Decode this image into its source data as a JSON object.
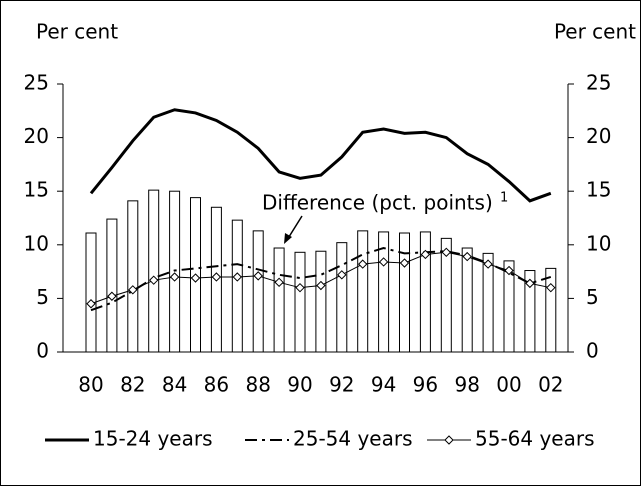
{
  "chart_data": {
    "type": "bar-line",
    "y_label_left": "Per cent",
    "y_label_right": "Per cent",
    "annotation": "Difference (pct. points)",
    "annotation_note": "1",
    "categories": [
      "80",
      null,
      "82",
      null,
      "84",
      null,
      "86",
      null,
      "88",
      null,
      "90",
      null,
      "92",
      null,
      "94",
      null,
      "96",
      null,
      "98",
      null,
      "00",
      null,
      "02"
    ],
    "series": [
      {
        "type": "bar",
        "color": "#000000",
        "fill": "#ffffff",
        "values": [
          11.1,
          12.4,
          14.1,
          15.1,
          15.0,
          14.4,
          13.5,
          12.3,
          11.3,
          9.7,
          9.3,
          9.4,
          10.2,
          11.3,
          11.2,
          11.1,
          11.2,
          10.6,
          9.7,
          9.2,
          8.5,
          7.6,
          7.8
        ]
      },
      {
        "type": "line",
        "name": "15-24 years",
        "color": "#000000",
        "line_style": "solid-thick",
        "values": [
          14.8,
          17.2,
          19.7,
          21.9,
          22.6,
          22.3,
          21.6,
          20.5,
          19.0,
          16.8,
          16.2,
          16.5,
          18.2,
          20.5,
          20.8,
          20.4,
          20.5,
          20.0,
          18.5,
          17.5,
          15.9,
          14.1,
          14.8
        ]
      },
      {
        "type": "line",
        "name": "25-54 years",
        "color": "#000000",
        "line_style": "dash-dot",
        "values": [
          3.9,
          4.6,
          5.7,
          6.9,
          7.6,
          7.8,
          8.0,
          8.2,
          7.7,
          7.2,
          6.9,
          7.2,
          8.1,
          9.1,
          9.7,
          9.2,
          9.3,
          9.4,
          9.0,
          8.3,
          7.4,
          6.4,
          7.0
        ]
      },
      {
        "type": "line",
        "name": "55-64 years",
        "color": "#000000",
        "line_style": "thin",
        "marker": "diamond",
        "values": [
          4.5,
          5.2,
          5.8,
          6.7,
          7.0,
          6.9,
          7.0,
          7.0,
          7.1,
          6.5,
          6.0,
          6.2,
          7.2,
          8.2,
          8.4,
          8.3,
          9.1,
          9.3,
          8.9,
          8.2,
          7.6,
          6.4,
          6.0
        ]
      }
    ],
    "ylim": [
      0,
      25
    ],
    "yticks": [
      0,
      5,
      10,
      15,
      20,
      25
    ],
    "y2lim": [
      0,
      25
    ],
    "y2ticks": [
      0,
      5,
      10,
      15,
      20,
      25
    ],
    "grid": false,
    "legend": "bottom"
  }
}
